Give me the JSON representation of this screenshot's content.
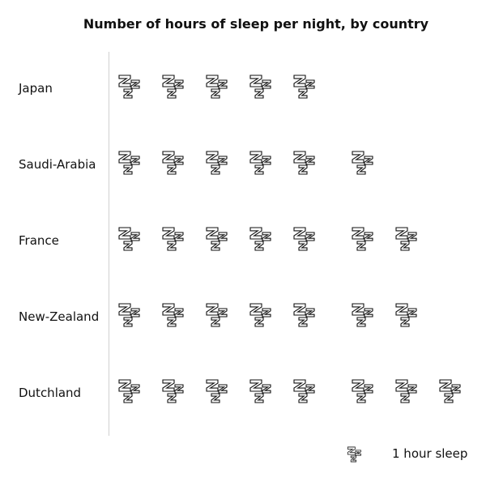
{
  "chart_data": {
    "type": "pictograph",
    "title": "Number of hours of sleep per night, by country",
    "unit_icon": "sleep-zzz-icon",
    "legend_label": "1 hour sleep",
    "categories": [
      "Japan",
      "Saudi-Arabia",
      "France",
      "New-Zealand",
      "Dutchland"
    ],
    "values": [
      5,
      6,
      7,
      7,
      8
    ]
  }
}
